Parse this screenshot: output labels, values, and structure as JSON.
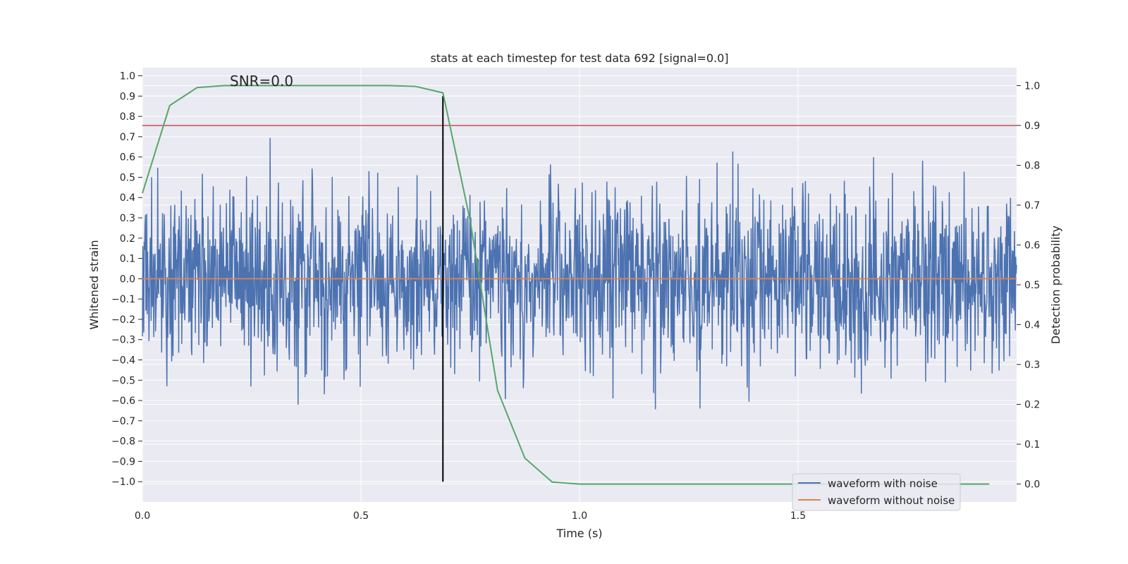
{
  "chart_data": {
    "type": "line",
    "title": "stats at each timestep for test data 692 [signal=0.0]",
    "xlabel": "Time (s)",
    "ylabel": "Whitened strain",
    "ylabel_right": "Detection probability",
    "xlim": [
      0.0,
      2.0
    ],
    "ylim": [
      -1.1,
      1.04
    ],
    "ylim_right": [
      -0.045,
      1.045
    ],
    "x_ticks": [
      0.0,
      0.5,
      1.0,
      1.5
    ],
    "x_tick_labels": [
      "0.0",
      "0.5",
      "1.0",
      "1.5"
    ],
    "y_ticks": [
      1.0,
      0.9,
      0.8,
      0.7,
      0.6,
      0.5,
      0.4,
      0.3,
      0.2,
      0.1,
      0.0,
      -0.1,
      -0.2,
      -0.3,
      -0.4,
      -0.5,
      -0.6,
      -0.7,
      -0.8,
      -0.9,
      -1.0
    ],
    "y_tick_labels": [
      "1.0",
      "0.9",
      "0.8",
      "0.7",
      "0.6",
      "0.5",
      "0.4",
      "0.3",
      "0.2",
      "0.1",
      "0.0",
      "−0.1",
      "−0.2",
      "−0.3",
      "−0.4",
      "−0.5",
      "−0.6",
      "−0.7",
      "−0.8",
      "−0.9",
      "−1.0"
    ],
    "y_right_ticks": [
      1.0,
      0.9,
      0.8,
      0.7,
      0.6,
      0.5,
      0.4,
      0.3,
      0.2,
      0.1,
      0.0
    ],
    "y_right_tick_labels": [
      "1.0",
      "0.9",
      "0.8",
      "0.7",
      "0.6",
      "0.5",
      "0.4",
      "0.3",
      "0.2",
      "0.1",
      "0.0"
    ],
    "annotation": "SNR=0.0",
    "annotation_at": {
      "x": 0.2,
      "y": 0.95
    },
    "threshold": {
      "value": 0.9,
      "axis": "right",
      "color": "#c44e52"
    },
    "marker_line": {
      "x": 0.6875,
      "y_from": -1.0,
      "y_to": 0.9,
      "color": "#000000"
    },
    "series": [
      {
        "name": "waveform with noise",
        "color": "#4c72b0",
        "axis": "left",
        "kind": "noise",
        "n": 2000,
        "x_end": 2.0
      },
      {
        "name": "waveform without noise",
        "color": "#dd8452",
        "axis": "left",
        "x": [
          0.0,
          2.0
        ],
        "values": [
          0.0,
          0.0
        ]
      },
      {
        "name": "Detection probability",
        "color": "#55a868",
        "axis": "right",
        "in_legend": false,
        "x": [
          0.0,
          0.0625,
          0.125,
          0.1875,
          0.25,
          0.3125,
          0.375,
          0.4375,
          0.5,
          0.5625,
          0.625,
          0.6875,
          0.75,
          0.8125,
          0.875,
          0.9375,
          1.0,
          1.0625,
          1.125,
          1.1875,
          1.25,
          1.3125,
          1.375,
          1.4375,
          1.5,
          1.5625,
          1.625,
          1.6875,
          1.75,
          1.8125,
          1.875,
          1.9375
        ],
        "values": [
          0.73,
          0.95,
          0.995,
          1.0,
          1.0,
          1.0,
          1.0,
          1.0,
          1.0,
          1.0,
          0.998,
          0.982,
          0.66,
          0.235,
          0.065,
          0.005,
          0.0,
          0.0,
          0.0,
          0.0,
          0.0,
          0.0,
          0.0,
          0.0,
          0.0,
          0.0,
          0.0,
          0.0,
          0.0,
          0.0,
          0.0,
          0.0
        ]
      }
    ],
    "legend_position": "lower-right"
  }
}
